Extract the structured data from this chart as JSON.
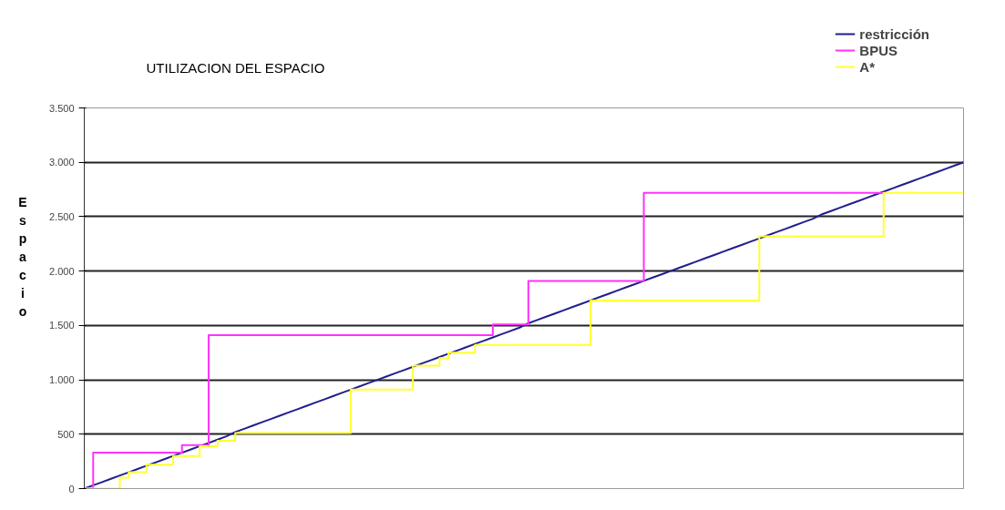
{
  "chart_data": {
    "type": "step",
    "title": "UTILIZACION DEL ESPACIO",
    "ylabel": "Espacio",
    "categories": [
      null,
      null,
      null,
      null,
      null,
      null,
      null,
      null,
      null,
      null,
      null,
      null,
      null,
      null,
      null,
      null,
      null,
      null,
      null,
      null,
      null,
      null,
      null,
      null,
      null,
      null,
      null,
      null,
      null,
      null,
      null,
      null,
      null,
      null,
      null,
      null,
      null,
      null,
      null,
      null,
      null,
      null,
      null,
      null,
      null,
      null,
      null,
      null,
      null,
      null,
      null,
      null,
      null,
      null,
      null,
      null,
      null,
      null,
      null,
      null,
      null,
      null,
      null,
      null,
      null,
      null,
      null,
      null,
      null,
      null,
      null,
      null,
      null,
      null,
      null,
      null,
      null,
      null,
      null,
      null,
      null,
      null,
      null,
      null,
      null,
      null,
      null,
      null,
      null,
      null,
      null,
      null,
      null,
      null,
      null,
      null,
      null,
      null,
      null,
      null
    ],
    "series": [
      {
        "name": "restricción",
        "type": "line",
        "color": "#1f1f8f",
        "values": [
          0,
          30,
          60,
          90,
          120,
          150,
          180,
          210,
          240,
          270,
          300,
          330,
          360,
          390,
          420,
          450,
          480,
          520,
          550,
          580,
          610,
          640,
          670,
          700,
          730,
          760,
          790,
          820,
          850,
          880,
          910,
          940,
          970,
          1000,
          1030,
          1060,
          1090,
          1120,
          1150,
          1180,
          1210,
          1240,
          1270,
          1300,
          1330,
          1360,
          1390,
          1420,
          1450,
          1480,
          1520,
          1550,
          1580,
          1610,
          1640,
          1670,
          1700,
          1730,
          1760,
          1790,
          1820,
          1850,
          1880,
          1910,
          1940,
          1970,
          2000,
          2030,
          2060,
          2090,
          2120,
          2150,
          2180,
          2210,
          2240,
          2270,
          2300,
          2330,
          2360,
          2390,
          2420,
          2450,
          2480,
          2520,
          2550,
          2580,
          2610,
          2640,
          2670,
          2700,
          2730,
          2760,
          2790,
          2820,
          2850,
          2880,
          2910,
          2940,
          2970,
          3000
        ]
      },
      {
        "name": "BPUS",
        "color": "#ff33ff",
        "values": [
          0,
          330,
          330,
          330,
          330,
          330,
          330,
          330,
          330,
          330,
          330,
          400,
          400,
          400,
          1410,
          1410,
          1410,
          1410,
          1410,
          1410,
          1410,
          1410,
          1410,
          1410,
          1410,
          1410,
          1410,
          1410,
          1410,
          1410,
          1410,
          1410,
          1410,
          1410,
          1410,
          1410,
          1410,
          1410,
          1410,
          1410,
          1410,
          1410,
          1410,
          1410,
          1410,
          1410,
          1510,
          1510,
          1510,
          1510,
          1910,
          1910,
          1910,
          1910,
          1910,
          1910,
          1910,
          1910,
          1910,
          1910,
          1910,
          1910,
          1910,
          2720,
          2720,
          2720,
          2720,
          2720,
          2720,
          2720,
          2720,
          2720,
          2720,
          2720,
          2720,
          2720,
          2720,
          2720,
          2720,
          2720,
          2720,
          2720,
          2720,
          2720,
          2720,
          2720,
          2720,
          2720,
          2720,
          2720,
          2720,
          null,
          null,
          null,
          null,
          null,
          null,
          null,
          null,
          null
        ]
      },
      {
        "name": "A*",
        "color": "#ffff33",
        "values": [
          0,
          0,
          0,
          0,
          100,
          150,
          150,
          220,
          220,
          220,
          300,
          300,
          300,
          390,
          390,
          440,
          440,
          510,
          510,
          510,
          510,
          510,
          510,
          510,
          510,
          510,
          510,
          510,
          510,
          510,
          910,
          910,
          910,
          910,
          910,
          910,
          910,
          1130,
          1130,
          1130,
          1200,
          1250,
          1250,
          1250,
          1320,
          1320,
          1320,
          1320,
          1320,
          1320,
          1320,
          1320,
          1320,
          1320,
          1320,
          1320,
          1320,
          1730,
          1730,
          1730,
          1730,
          1730,
          1730,
          1730,
          1730,
          1730,
          1730,
          1730,
          1730,
          1730,
          1730,
          1730,
          1730,
          1730,
          1730,
          1730,
          2320,
          2320,
          2320,
          2320,
          2320,
          2320,
          2320,
          2320,
          2320,
          2320,
          2320,
          2320,
          2320,
          2320,
          2720,
          2720,
          2720,
          2720,
          2720,
          2720,
          2720,
          2720,
          2720,
          2720
        ]
      }
    ],
    "ylim": [
      0,
      3500
    ],
    "yticks": [
      0,
      500,
      {
        "value": 1000,
        "label": "1.000"
      },
      {
        "value": 1500,
        "label": "1.500"
      },
      {
        "value": 2000,
        "label": "2.000"
      },
      {
        "value": 2500,
        "label": "2.500"
      },
      {
        "value": 3000,
        "label": "3.000"
      },
      {
        "value": 3500,
        "label": "3.500"
      }
    ],
    "grid": "y",
    "legend": "top right",
    "tick_labels": "y"
  }
}
